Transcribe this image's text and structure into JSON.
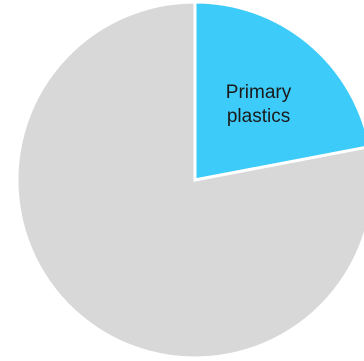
{
  "chart_data": {
    "type": "pie",
    "slices": [
      {
        "label_lines": [
          "Primary",
          "plastics"
        ],
        "value": 22,
        "color": "#3dccf9"
      },
      {
        "label_lines": [],
        "value": 78,
        "color": "#d8d8d8"
      }
    ],
    "start_angle_deg": 0,
    "direction": "clockwise",
    "separator_color": "#ffffff",
    "legend": "none"
  }
}
